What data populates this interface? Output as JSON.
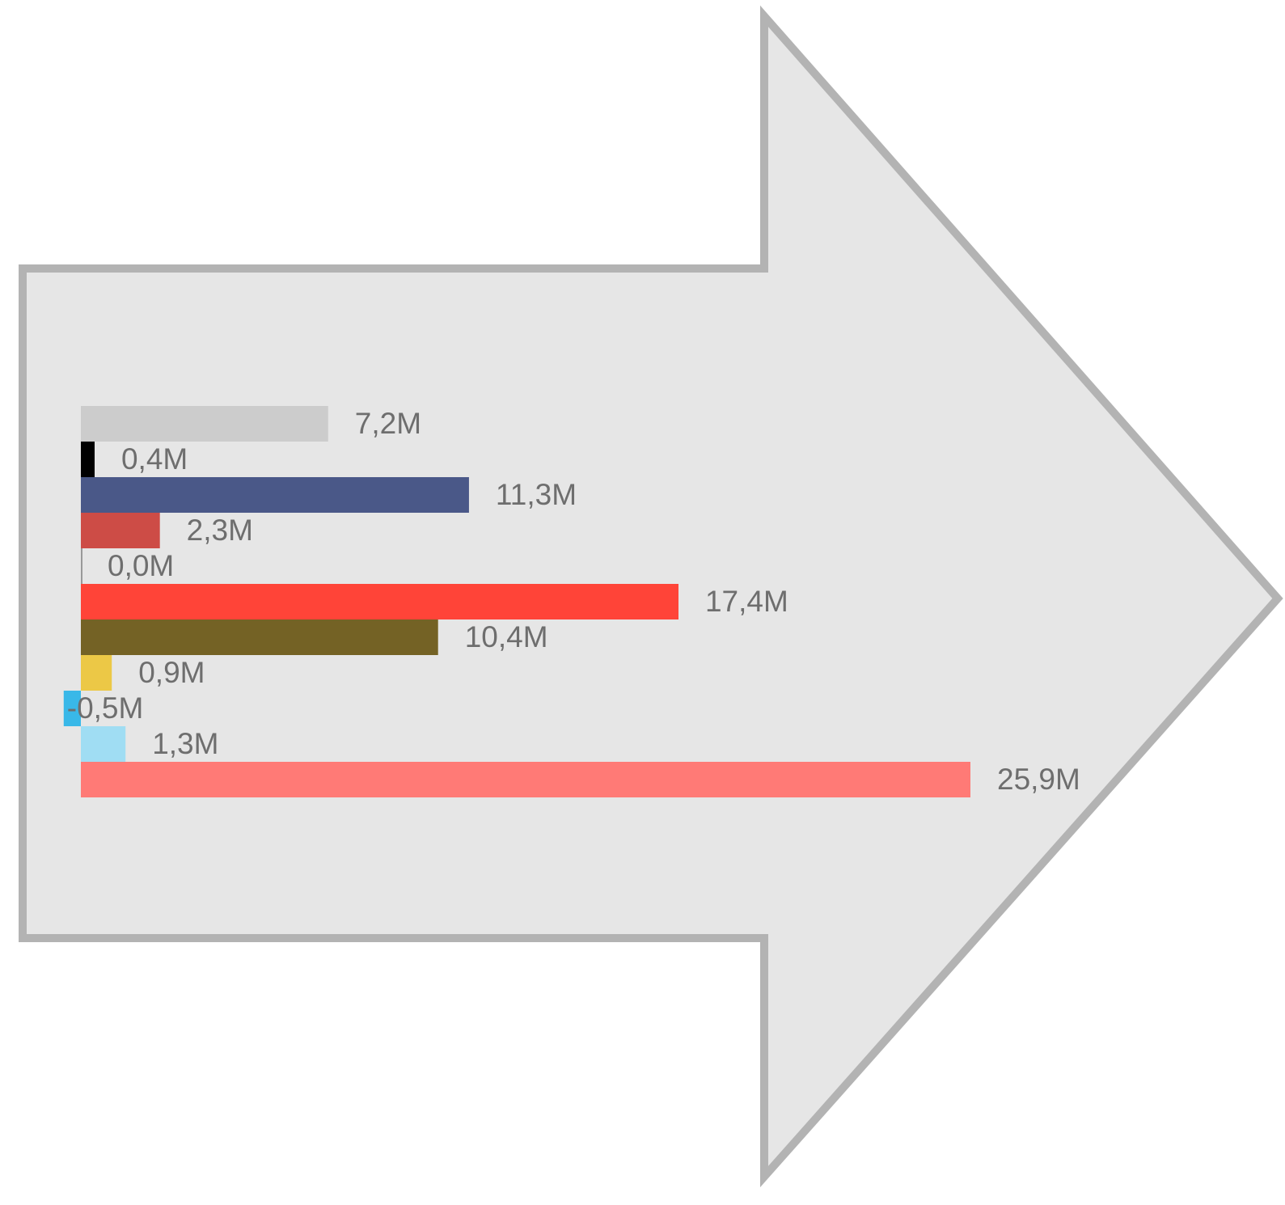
{
  "chart_data": {
    "type": "hbar",
    "values": [
      7.2,
      0.4,
      11.3,
      2.3,
      0.0,
      17.4,
      10.4,
      0.9,
      -0.5,
      1.3,
      25.9
    ],
    "value_labels": [
      "7,2M",
      "0,4M",
      "11,3M",
      "2,3M",
      "0,0M",
      "17,4M",
      "10,4M",
      "0,9M",
      "-0,5M",
      "1,3M",
      "25,9M"
    ],
    "colors": [
      "#cccccc",
      "#000000",
      "#4a5888",
      "#cd4c46",
      "#999999",
      "#ff4438",
      "#746225",
      "#ecc846",
      "#39b8e8",
      "#a0ddf3",
      "#ff7a76"
    ]
  }
}
